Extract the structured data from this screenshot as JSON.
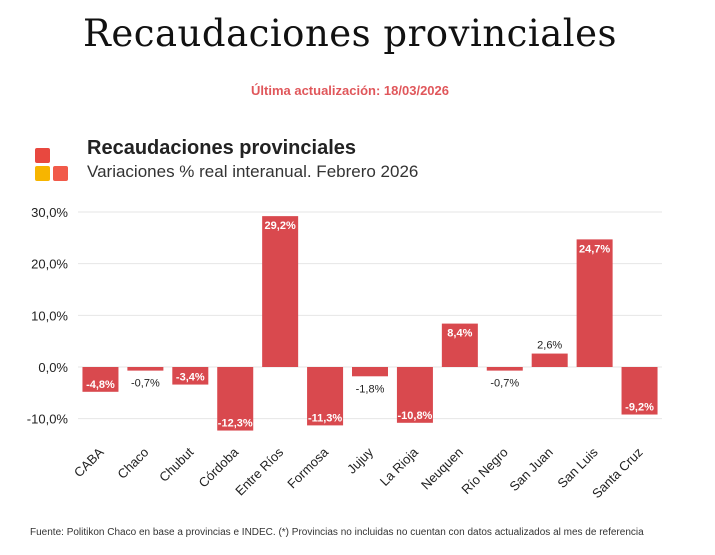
{
  "header": {
    "title": "Recaudaciones provinciales",
    "updated": "Última actualización: 18/03/2026"
  },
  "colors": {
    "bar": "#d9494e",
    "updated_text": "#e0575b",
    "logo": [
      "#e8483f",
      "#f7b500",
      "#f15a4a"
    ]
  },
  "logo": {
    "icon": "colored-squares-logo"
  },
  "chart_data": {
    "type": "bar",
    "title": "Recaudaciones provinciales",
    "subtitle": "Variaciones % real interanual. Febrero 2026",
    "categories": [
      "CABA",
      "Chaco",
      "Chubut",
      "Córdoba",
      "Entre Ríos",
      "Formosa",
      "Jujuy",
      "La Rioja",
      "Neuquen",
      "Río Negro",
      "San Juan",
      "San Luis",
      "Santa Cruz"
    ],
    "values": [
      -4.8,
      -0.7,
      -3.4,
      -12.3,
      29.2,
      -11.3,
      -1.8,
      -10.8,
      8.4,
      -0.7,
      2.6,
      24.7,
      -9.2
    ],
    "labels": [
      "-4,8%",
      "-0,7%",
      "-3,4%",
      "-12,3%",
      "29,2%",
      "-11,3%",
      "-1,8%",
      "-10,8%",
      "8,4%",
      "-0,7%",
      "2,6%",
      "24,7%",
      "-9,2%"
    ],
    "yticks": [
      30,
      20,
      10,
      0,
      -10
    ],
    "ytick_labels": [
      "30,0%",
      "20,0%",
      "10,0%",
      "0,0%",
      "-10,0%"
    ],
    "ylim": [
      -12.3,
      30
    ],
    "grid": true,
    "legend": "none"
  },
  "footer": {
    "source": "Fuente: Politikon Chaco en base a provincias e INDEC. (*) Provincias no incluidas no cuentan con datos actualizados al mes de referencia"
  }
}
